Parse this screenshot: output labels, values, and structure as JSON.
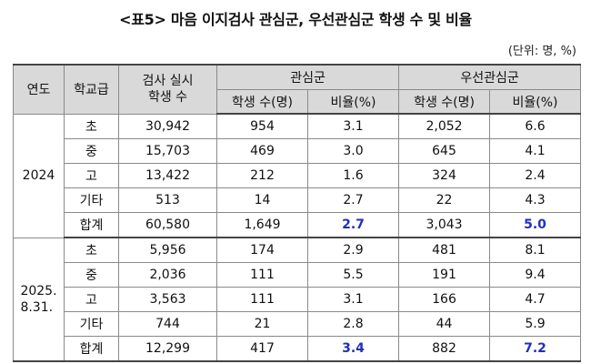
{
  "title": "<표5> 마음 이지검사 관심군, 우선관심군 학생 수 및 비율",
  "unit": "(단위: 명, %)",
  "headers": {
    "year": "연도",
    "level": "학교급",
    "tested": "검사 실시\n학생 수",
    "concern": "관심군",
    "priority": "우선관심군",
    "count": "학생 수(명)",
    "ratio": "비율(%)"
  },
  "groups": [
    {
      "year": "2024",
      "rows": [
        {
          "level": "초",
          "tested": "30,942",
          "c_count": "954",
          "c_ratio": "3.1",
          "p_count": "2,052",
          "p_ratio": "6.6"
        },
        {
          "level": "중",
          "tested": "15,703",
          "c_count": "469",
          "c_ratio": "3.0",
          "p_count": "645",
          "p_ratio": "4.1"
        },
        {
          "level": "고",
          "tested": "13,422",
          "c_count": "212",
          "c_ratio": "1.6",
          "p_count": "324",
          "p_ratio": "2.4"
        },
        {
          "level": "기타",
          "tested": "513",
          "c_count": "14",
          "c_ratio": "2.7",
          "p_count": "22",
          "p_ratio": "4.3"
        },
        {
          "level": "합계",
          "tested": "60,580",
          "c_count": "1,649",
          "c_ratio": "2.7",
          "p_count": "3,043",
          "p_ratio": "5.0"
        }
      ]
    },
    {
      "year": "2025.\n8.31.",
      "rows": [
        {
          "level": "초",
          "tested": "5,956",
          "c_count": "174",
          "c_ratio": "2.9",
          "p_count": "481",
          "p_ratio": "8.1"
        },
        {
          "level": "중",
          "tested": "2,036",
          "c_count": "111",
          "c_ratio": "5.5",
          "p_count": "191",
          "p_ratio": "9.4"
        },
        {
          "level": "고",
          "tested": "3,563",
          "c_count": "111",
          "c_ratio": "3.1",
          "p_count": "166",
          "p_ratio": "4.7"
        },
        {
          "level": "기타",
          "tested": "744",
          "c_count": "21",
          "c_ratio": "2.8",
          "p_count": "44",
          "p_ratio": "5.9"
        },
        {
          "level": "합계",
          "tested": "12,299",
          "c_count": "417",
          "c_ratio": "3.4",
          "p_count": "882",
          "p_ratio": "7.2"
        }
      ]
    }
  ],
  "colors": {
    "header_bg": "#d9d9d9",
    "highlight": "#1f2fc0"
  }
}
